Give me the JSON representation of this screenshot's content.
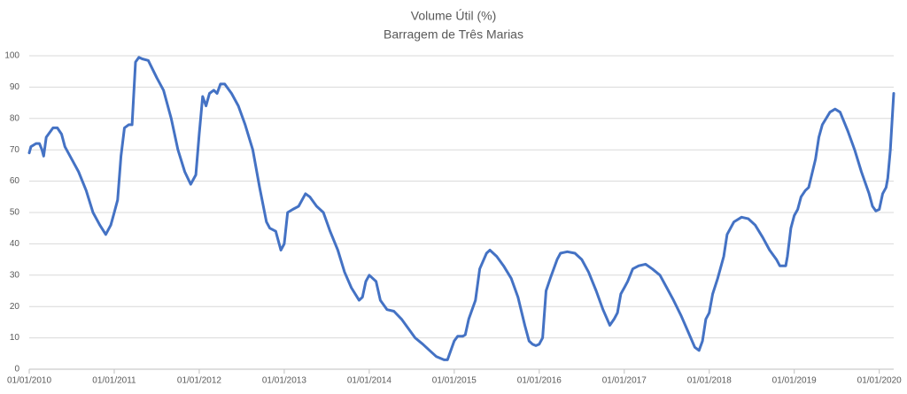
{
  "chart_data": {
    "type": "line",
    "title": "Volume Útil (%)",
    "subtitle": "Barragem de Três Marias",
    "x": [
      2010.0,
      2010.02,
      2010.08,
      2010.12,
      2010.15,
      2010.17,
      2010.2,
      2010.28,
      2010.33,
      2010.38,
      2010.42,
      2010.5,
      2010.58,
      2010.67,
      2010.75,
      2010.83,
      2010.9,
      2010.96,
      2011.0,
      2011.04,
      2011.08,
      2011.12,
      2011.17,
      2011.21,
      2011.25,
      2011.29,
      2011.33,
      2011.4,
      2011.5,
      2011.58,
      2011.67,
      2011.75,
      2011.83,
      2011.9,
      2011.96,
      2012.0,
      2012.04,
      2012.08,
      2012.12,
      2012.17,
      2012.21,
      2012.25,
      2012.3,
      2012.38,
      2012.46,
      2012.54,
      2012.63,
      2012.71,
      2012.79,
      2012.83,
      2012.9,
      2012.96,
      2013.0,
      2013.04,
      2013.1,
      2013.17,
      2013.25,
      2013.3,
      2013.38,
      2013.46,
      2013.54,
      2013.63,
      2013.71,
      2013.79,
      2013.88,
      2013.92,
      2013.96,
      2014.0,
      2014.08,
      2014.13,
      2014.21,
      2014.29,
      2014.38,
      2014.46,
      2014.54,
      2014.63,
      2014.71,
      2014.79,
      2014.88,
      2014.92,
      2014.96,
      2015.0,
      2015.04,
      2015.1,
      2015.13,
      2015.17,
      2015.25,
      2015.3,
      2015.38,
      2015.42,
      2015.5,
      2015.58,
      2015.67,
      2015.75,
      2015.83,
      2015.88,
      2015.92,
      2015.96,
      2016.0,
      2016.04,
      2016.08,
      2016.13,
      2016.21,
      2016.25,
      2016.33,
      2016.42,
      2016.5,
      2016.58,
      2016.67,
      2016.75,
      2016.83,
      2016.88,
      2016.92,
      2016.96,
      2017.0,
      2017.04,
      2017.1,
      2017.17,
      2017.25,
      2017.33,
      2017.42,
      2017.5,
      2017.58,
      2017.67,
      2017.75,
      2017.83,
      2017.88,
      2017.92,
      2017.96,
      2018.0,
      2018.04,
      2018.1,
      2018.17,
      2018.21,
      2018.29,
      2018.38,
      2018.46,
      2018.54,
      2018.63,
      2018.71,
      2018.79,
      2018.83,
      2018.9,
      2018.92,
      2018.96,
      2019.0,
      2019.04,
      2019.08,
      2019.13,
      2019.17,
      2019.25,
      2019.29,
      2019.33,
      2019.42,
      2019.48,
      2019.54,
      2019.63,
      2019.71,
      2019.79,
      2019.88,
      2019.92,
      2019.96,
      2020.0,
      2020.04,
      2020.08,
      2020.1,
      2020.13,
      2020.17
    ],
    "series": [
      {
        "color": "#4472c4",
        "values": [
          69,
          71,
          72,
          72,
          70,
          68,
          74,
          77,
          77,
          75,
          71,
          67,
          63,
          57,
          50,
          46,
          43,
          46,
          50,
          54,
          68,
          77,
          78,
          78,
          98,
          99.5,
          99,
          98.5,
          93,
          89,
          80,
          70,
          63,
          59,
          62,
          75,
          87,
          84,
          88,
          89,
          88,
          91,
          91,
          88,
          84,
          78,
          70,
          58,
          47,
          45,
          44,
          38,
          40,
          50,
          51,
          52,
          56,
          55,
          52,
          50,
          44,
          38,
          31,
          26,
          22,
          23,
          28,
          30,
          28,
          22,
          19,
          18.5,
          16,
          13,
          10,
          8,
          6,
          4,
          3,
          3,
          6,
          9,
          10.5,
          10.5,
          11,
          16,
          22,
          32,
          37,
          38,
          36,
          33,
          29,
          23,
          14,
          9,
          8,
          7.5,
          8,
          10,
          25,
          29,
          35,
          37,
          37.5,
          37,
          35,
          31,
          25,
          19,
          14,
          16,
          18,
          24,
          26,
          28,
          32,
          33,
          33.5,
          32,
          30,
          26,
          22,
          17,
          12,
          7,
          6,
          9,
          16,
          18,
          24,
          29,
          36,
          43,
          47,
          48.5,
          48,
          46,
          42,
          38,
          35,
          33,
          33,
          36,
          45,
          49,
          51,
          55,
          57,
          58,
          67,
          74,
          78,
          82,
          83,
          82,
          76,
          70,
          63,
          56,
          52,
          50.5,
          51,
          56,
          58,
          61,
          70,
          88
        ]
      }
    ],
    "xlim": [
      2010,
      2020.17
    ],
    "xticks": [
      {
        "value": 2010,
        "label": "01/01/2010"
      },
      {
        "value": 2011,
        "label": "01/01/2011"
      },
      {
        "value": 2012,
        "label": "01/01/2012"
      },
      {
        "value": 2013,
        "label": "01/01/2013"
      },
      {
        "value": 2014,
        "label": "01/01/2014"
      },
      {
        "value": 2015,
        "label": "01/01/2015"
      },
      {
        "value": 2016,
        "label": "01/01/2016"
      },
      {
        "value": 2017,
        "label": "01/01/2017"
      },
      {
        "value": 2018,
        "label": "01/01/2018"
      },
      {
        "value": 2019,
        "label": "01/01/2019"
      },
      {
        "value": 2020,
        "label": "01/01/2020"
      }
    ],
    "ylim": [
      0,
      100
    ],
    "yticks": [
      0,
      10,
      20,
      30,
      40,
      50,
      60,
      70,
      80,
      90,
      100
    ],
    "grid": true
  }
}
